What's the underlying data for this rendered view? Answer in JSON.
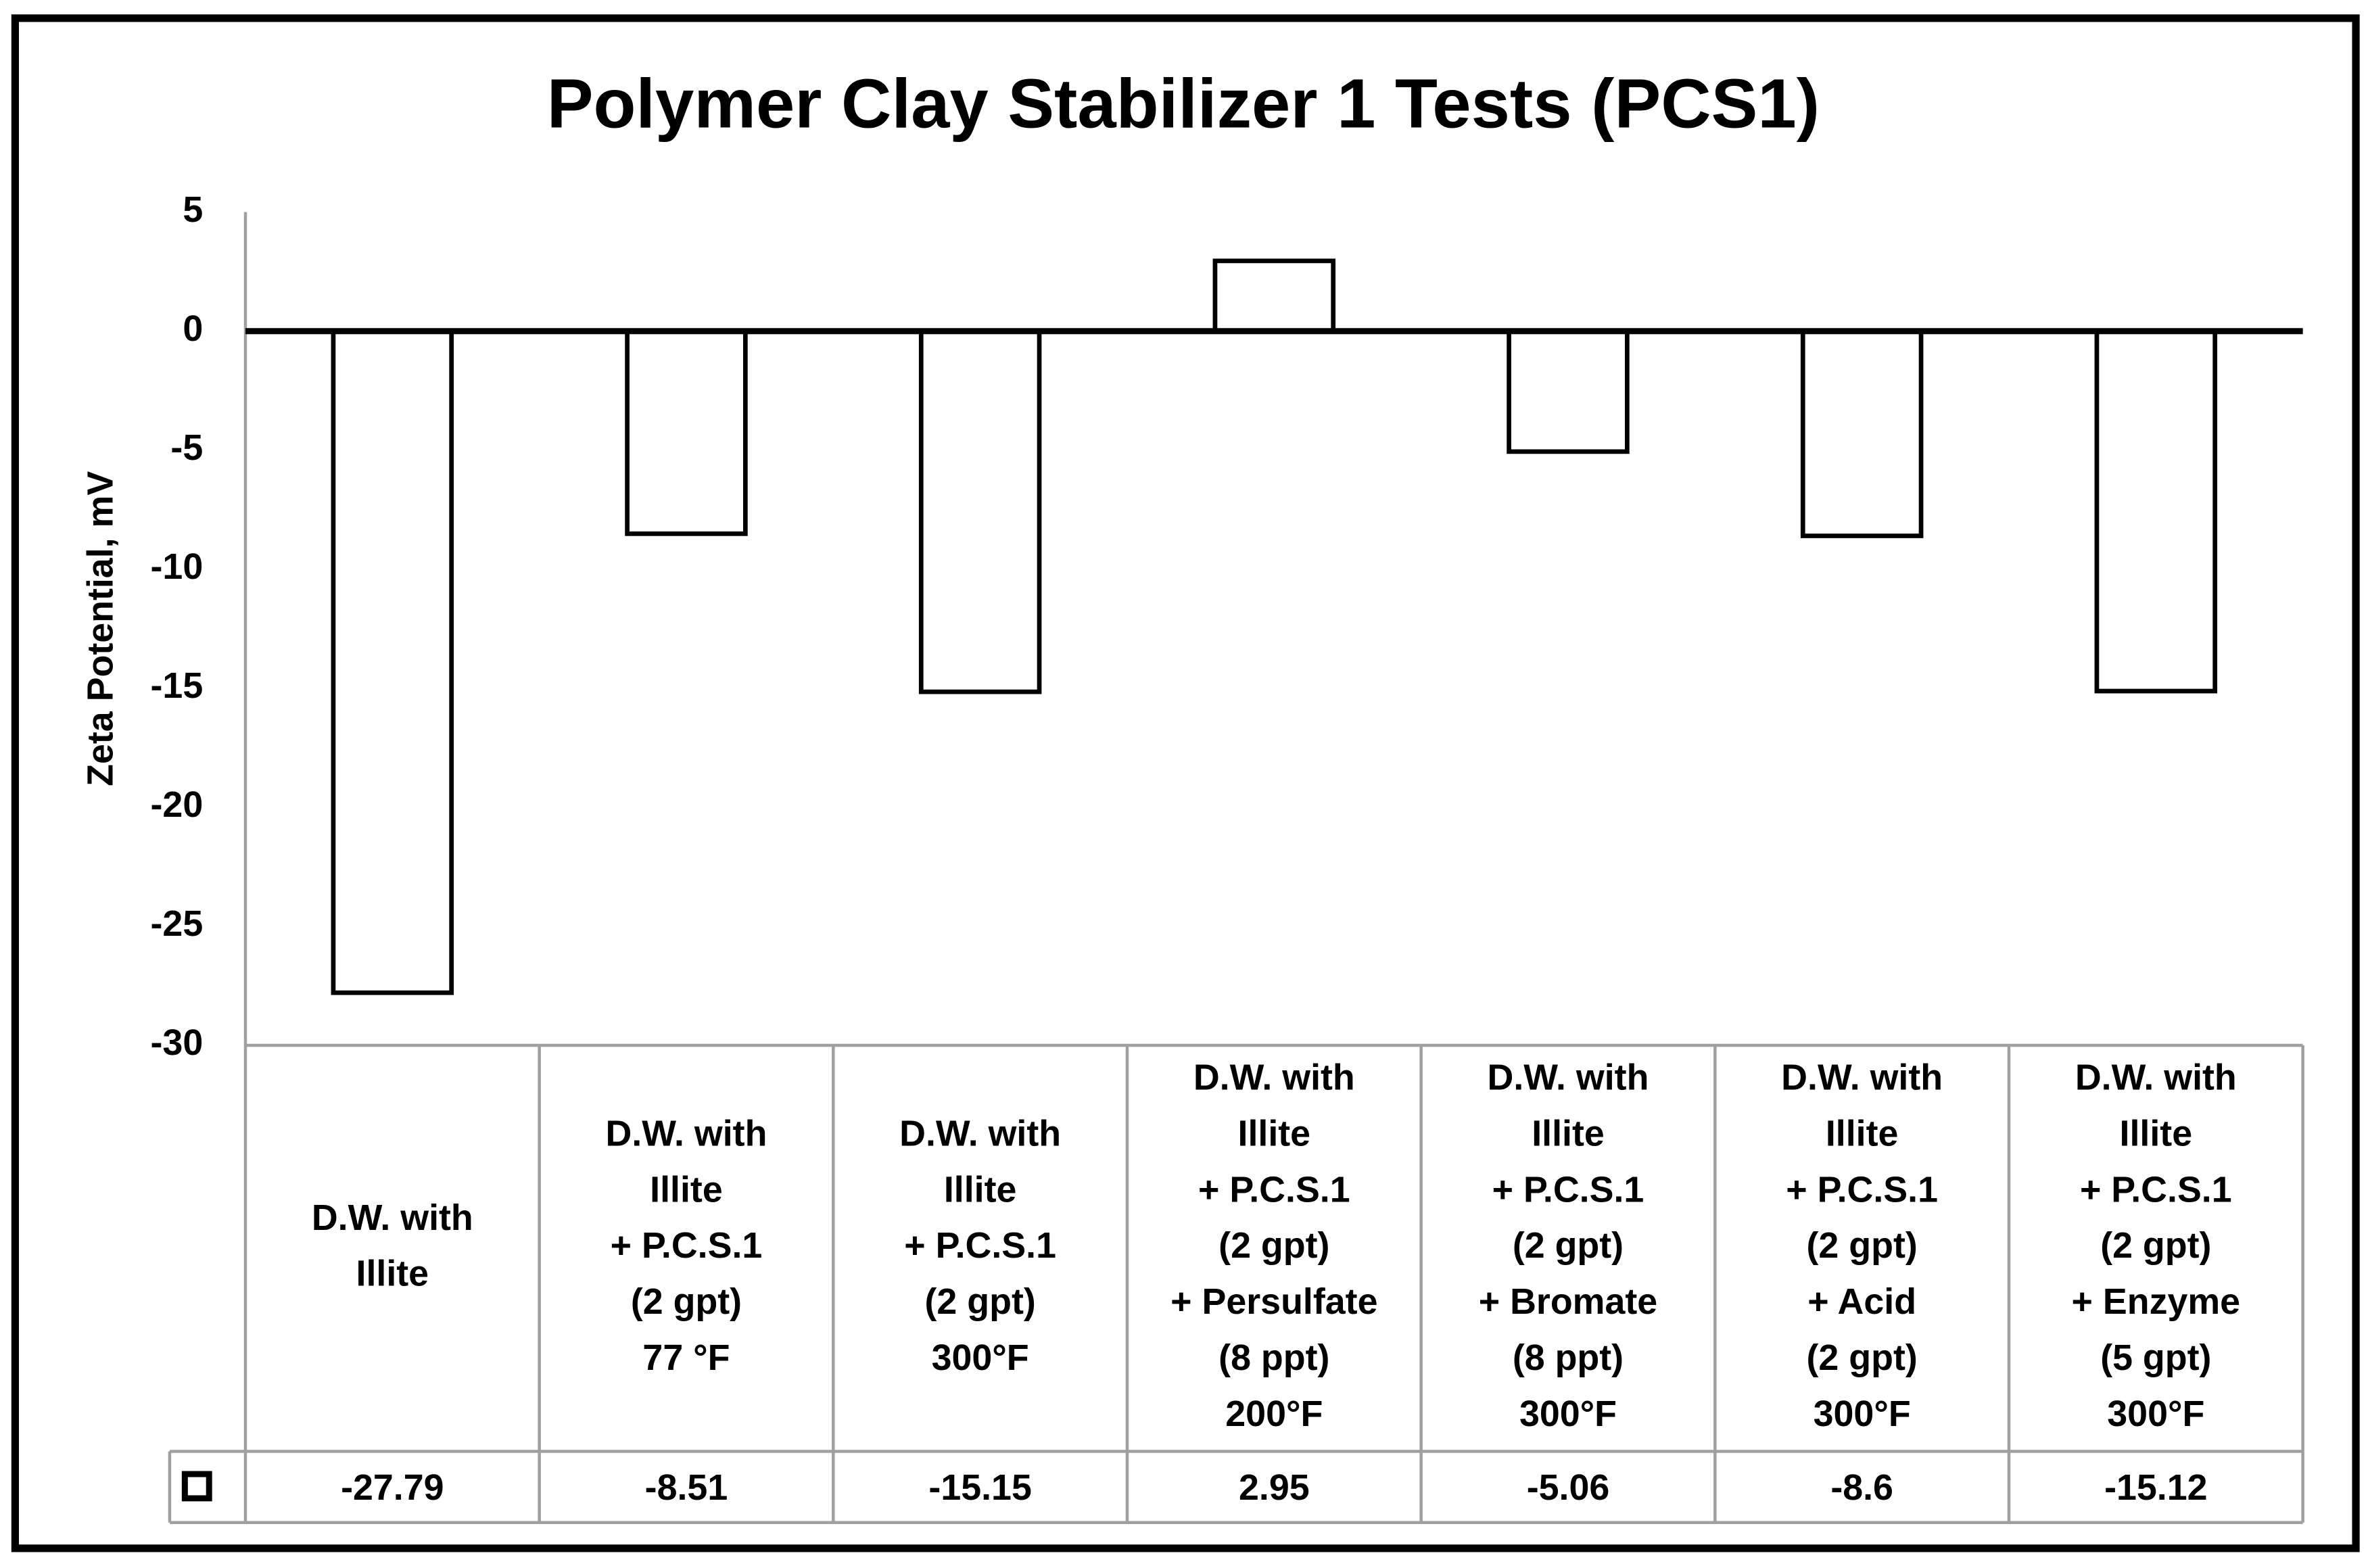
{
  "chart_data": {
    "type": "bar",
    "title": "Polymer Clay Stabilizer 1 Tests (PCS1)",
    "y_label": "Zeta Potential, mV",
    "categories": [
      "D.W. with\nIllite",
      "D.W. with\nIllite\n+ P.C.S.1\n(2 gpt)\n77 °F",
      "D.W. with\nIllite\n+ P.C.S.1\n(2 gpt)\n300°F",
      "D.W. with\nIllite\n+ P.C.S.1\n(2 gpt)\n+ Persulfate\n(8 ppt)\n200°F",
      "D.W. with\nIllite\n+ P.C.S.1\n(2 gpt)\n+ Bromate\n(8 ppt)\n300°F",
      "D.W. with\nIllite\n+ P.C.S.1\n(2 gpt)\n+ Acid\n(2 gpt)\n300°F",
      "D.W. with\nIllite\n+ P.C.S.1\n(2 gpt)\n+ Enzyme\n(5 gpt)\n300°F"
    ],
    "values": [
      -27.79,
      -8.51,
      -15.15,
      2.95,
      -5.06,
      -8.6,
      -15.12
    ],
    "color": "#ffffff",
    "edge_color": "#000000",
    "ylim": [
      -30,
      5
    ],
    "yticks": [
      -30,
      -25,
      -20,
      -15,
      -10,
      -5,
      0,
      5
    ],
    "grid": false,
    "data_table": true
  }
}
